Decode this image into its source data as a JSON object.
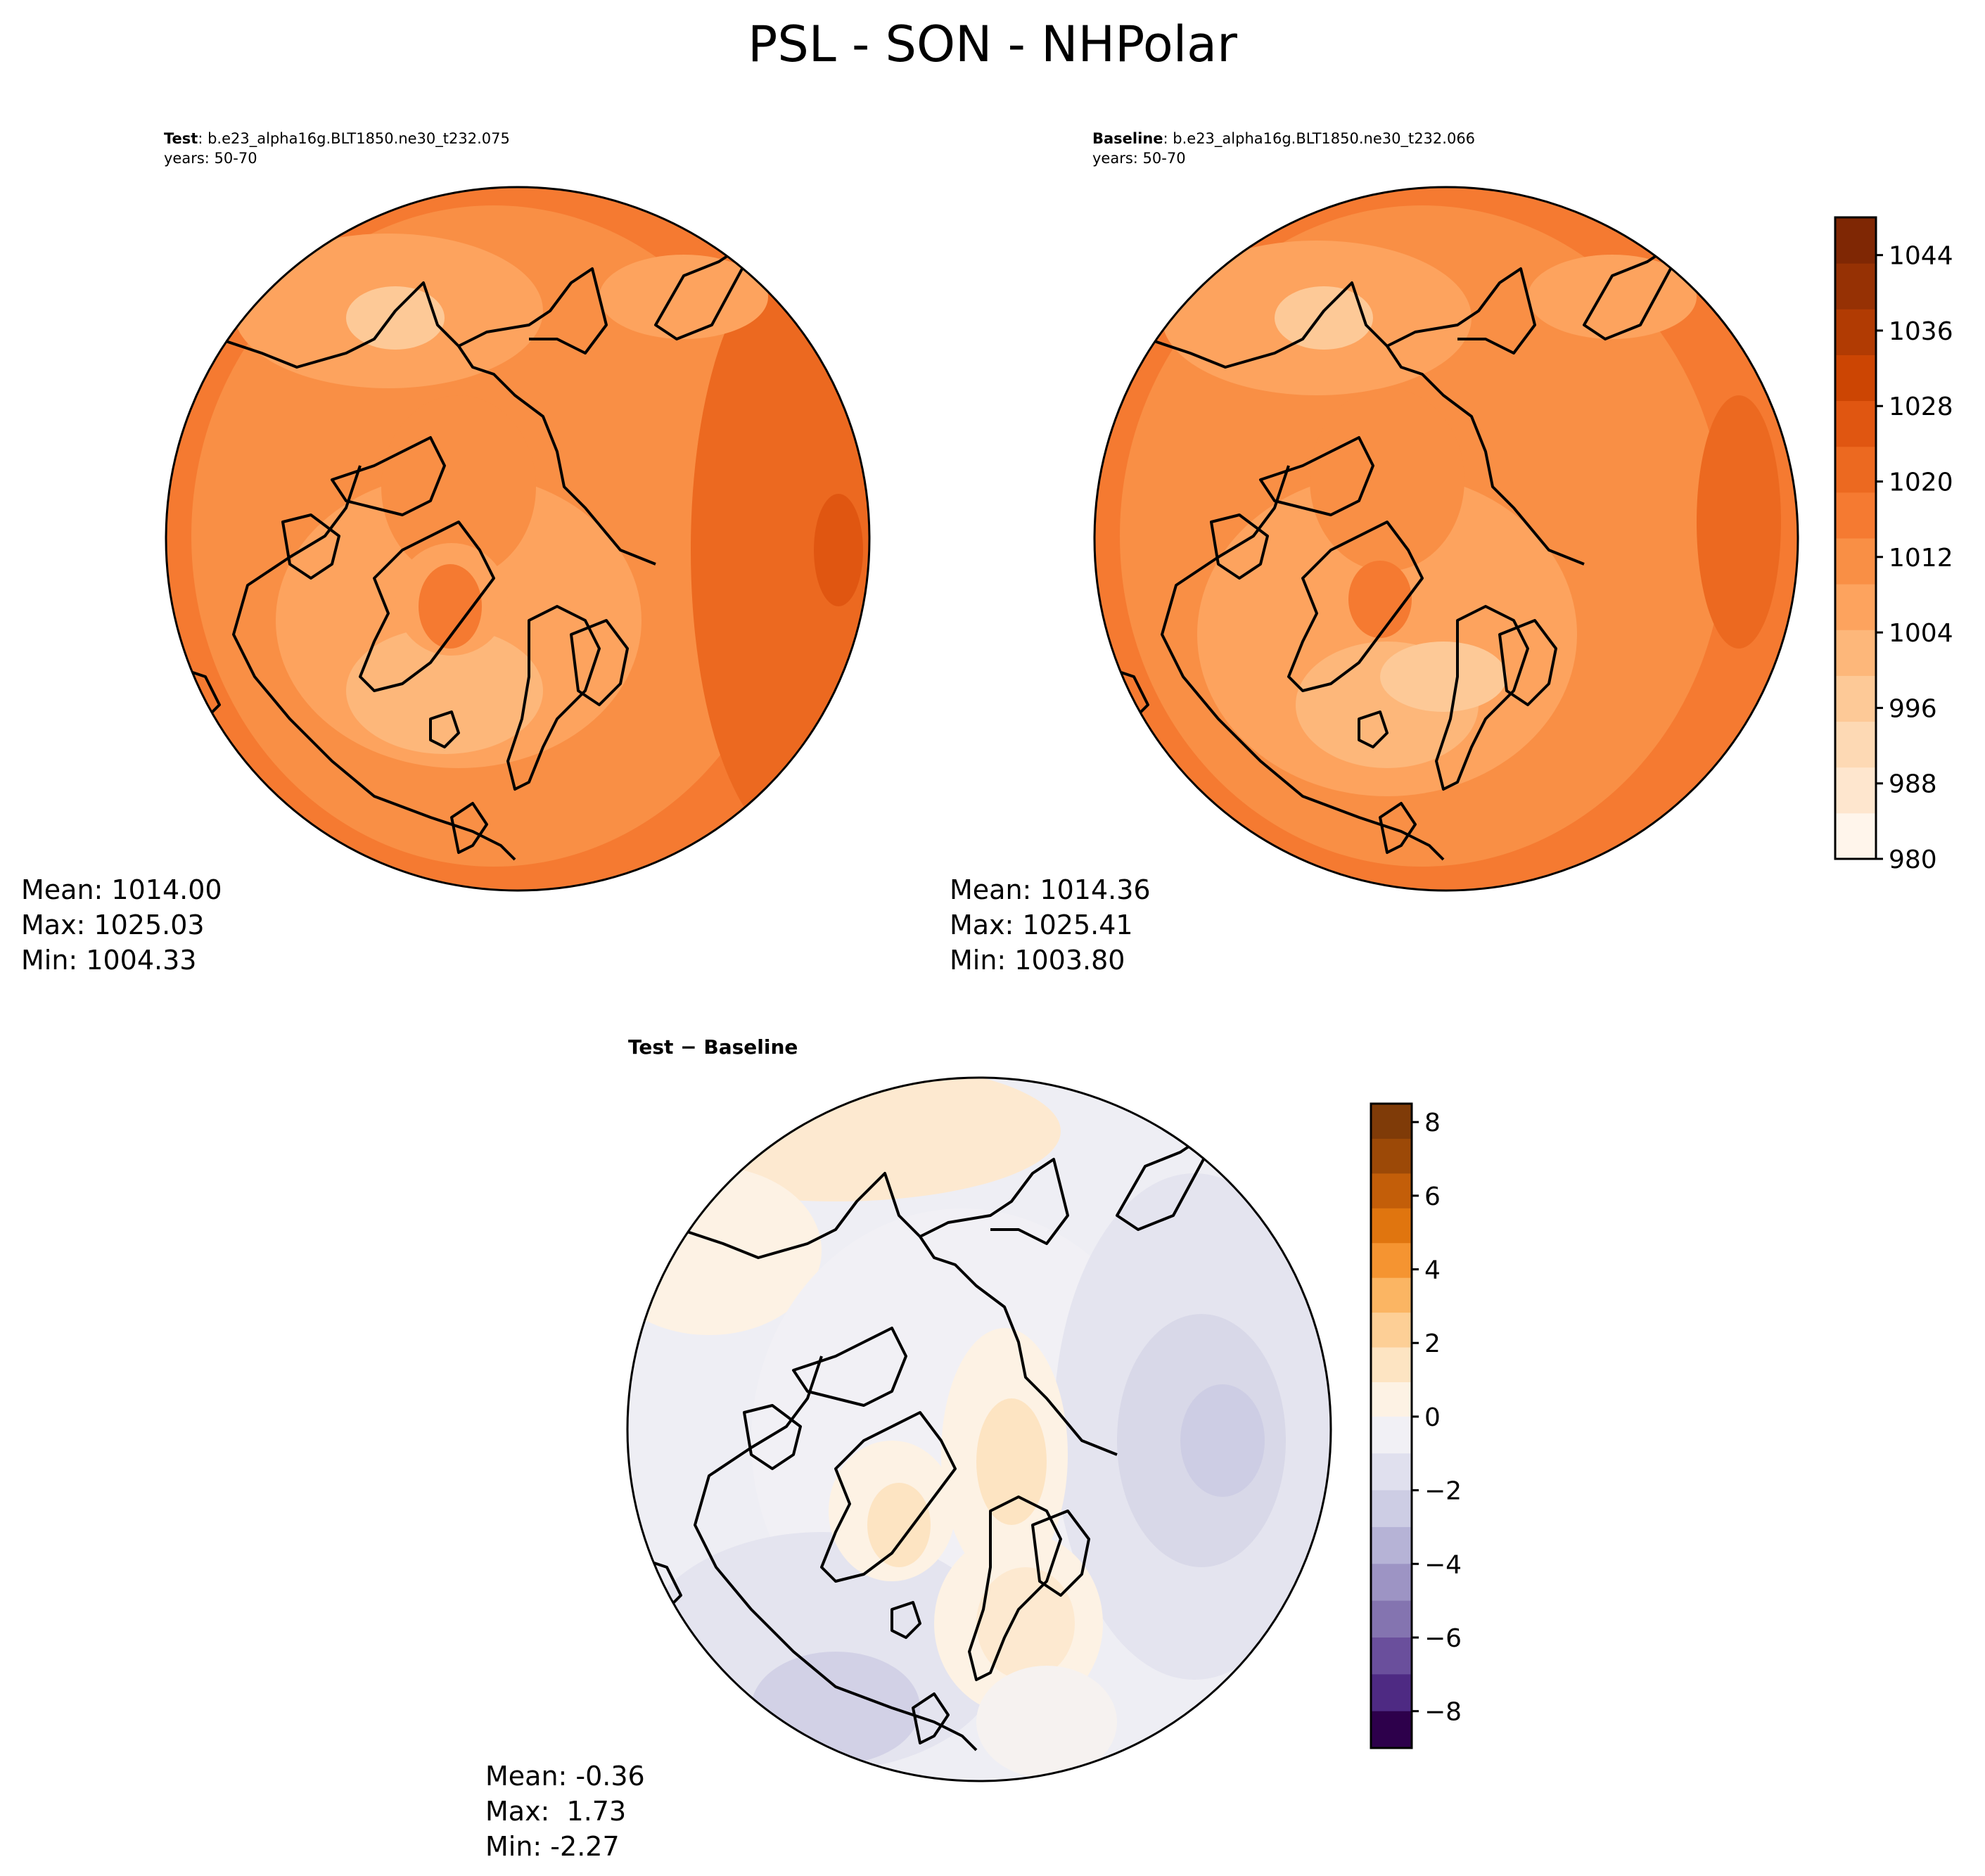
{
  "figure": {
    "title": "PSL - SON - NHPolar"
  },
  "panels": {
    "test": {
      "label": "Test",
      "case": ": b.e23_alpha16g.BLT1850.ne30_t232.075",
      "years": "years: 50-70",
      "stats": {
        "mean": "Mean: 1014.00",
        "max": "Max: 1025.03",
        "min": "Min: 1004.33"
      }
    },
    "baseline": {
      "label": "Baseline",
      "case": ": b.e23_alpha16g.BLT1850.ne30_t232.066",
      "years": "years: 50-70",
      "stats": {
        "mean": "Mean: 1014.36",
        "max": "Max: 1025.41",
        "min": "Min: 1003.80"
      }
    },
    "difference": {
      "label_a": "Test",
      "label_sep": " − ",
      "label_b": "Baseline",
      "stats": {
        "mean": "Mean: -0.36",
        "max": "Max:  1.73",
        "min": "Min: -2.27"
      }
    }
  },
  "colorbars": {
    "main": {
      "ticks": [
        "980",
        "988",
        "996",
        "1004",
        "1012",
        "1020",
        "1028",
        "1036",
        "1044"
      ],
      "min": 980,
      "max": 1048,
      "colors": [
        "#fff5eb",
        "#fee6ce",
        "#fdd9b4",
        "#fdc997",
        "#fdb77a",
        "#fda35e",
        "#f98f45",
        "#f57a31",
        "#ec6920",
        "#e05611",
        "#cc4503",
        "#b13b03",
        "#963104",
        "#7f2704"
      ]
    },
    "diff": {
      "ticks": [
        "8",
        "6",
        "4",
        "2",
        "0",
        "−2",
        "−4",
        "−6",
        "−8"
      ],
      "min": -9,
      "max": 8.5,
      "colors_top": [
        "#fdf2e4",
        "#fde4c2",
        "#fdcf96",
        "#fbb563",
        "#f59431",
        "#e0750f",
        "#c35e09",
        "#9c4907",
        "#7f3b08"
      ],
      "colors_bottom": [
        "#f1f0f5",
        "#e0e0ee",
        "#cdcde4",
        "#b6b3d6",
        "#9d94c4",
        "#8474b0",
        "#6a4f9c",
        "#4e2a83",
        "#2d004b"
      ]
    }
  }
}
